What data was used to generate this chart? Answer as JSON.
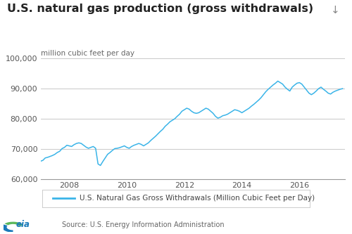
{
  "title": "U.S. natural gas production (gross withdrawals)",
  "ylabel": "million cubic feet per day",
  "legend_label": "U.S. Natural Gas Gross Withdrawals (Million Cubic Feet per Day)",
  "source": "Source: U.S. Energy Information Administration",
  "line_color": "#3ab4e8",
  "background_color": "#ffffff",
  "ylim": [
    60000,
    100000
  ],
  "yticks": [
    60000,
    70000,
    80000,
    90000,
    100000
  ],
  "grid_color": "#c8c8c8",
  "title_fontsize": 11.5,
  "ylabel_fontsize": 7.5,
  "tick_fontsize": 8,
  "legend_fontsize": 7.5,
  "source_fontsize": 7,
  "series": [
    65900,
    66200,
    67000,
    67200,
    67500,
    67800,
    68200,
    68800,
    69200,
    70100,
    70500,
    71200,
    71000,
    70800,
    71400,
    71800,
    72000,
    71800,
    71200,
    70600,
    70200,
    70500,
    70800,
    70200,
    65000,
    64500,
    65800,
    67000,
    68200,
    68800,
    69500,
    70100,
    70200,
    70400,
    70700,
    71000,
    70500,
    70200,
    70800,
    71200,
    71500,
    71800,
    71500,
    71000,
    71500,
    72000,
    72800,
    73500,
    74200,
    75000,
    75800,
    76500,
    77500,
    78200,
    79000,
    79500,
    80000,
    80800,
    81500,
    82500,
    83000,
    83500,
    83200,
    82500,
    82000,
    81800,
    82000,
    82500,
    83000,
    83500,
    83200,
    82500,
    81800,
    80800,
    80200,
    80500,
    81000,
    81200,
    81500,
    82000,
    82500,
    83000,
    82800,
    82500,
    82000,
    82500,
    83000,
    83500,
    84200,
    84800,
    85500,
    86200,
    87000,
    88000,
    89000,
    89800,
    90500,
    91200,
    91800,
    92500,
    92000,
    91500,
    90500,
    89800,
    89200,
    90500,
    91200,
    91800,
    92000,
    91500,
    90500,
    89500,
    88500,
    88000,
    88500,
    89200,
    90000,
    90500,
    89800,
    89200,
    88500,
    88200,
    88800,
    89200,
    89500,
    89800,
    90000
  ],
  "x_start_year": 2007.0,
  "xtick_years": [
    2008,
    2010,
    2012,
    2014,
    2016
  ]
}
